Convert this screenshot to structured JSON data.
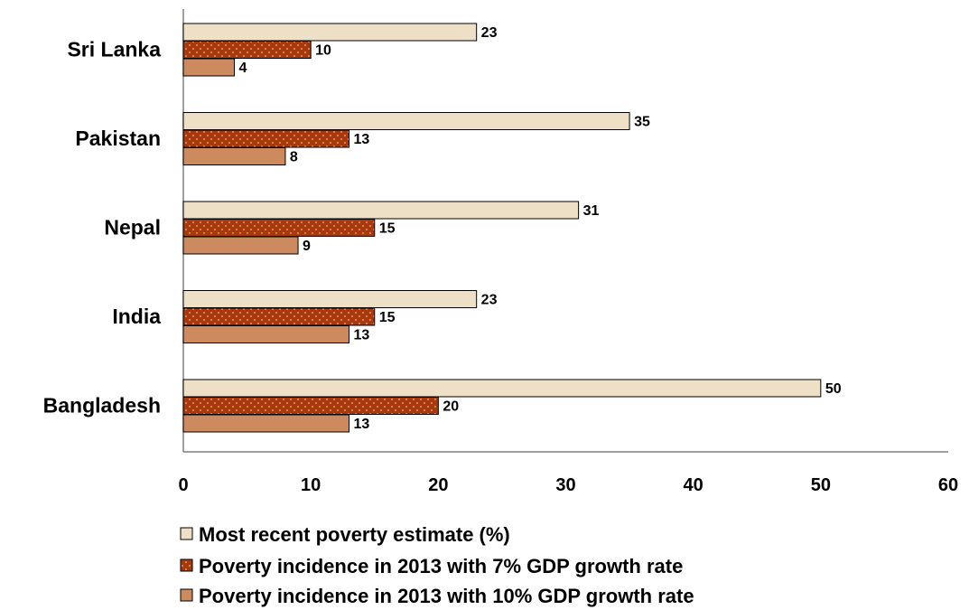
{
  "chart_data": {
    "type": "bar",
    "orientation": "horizontal",
    "categories": [
      "Sri Lanka",
      "Pakistan",
      "Nepal",
      "India",
      "Bangladesh"
    ],
    "series": [
      {
        "name": "Most recent poverty estimate (%)",
        "values": [
          23,
          35,
          31,
          23,
          50
        ],
        "color": "#ede0c6"
      },
      {
        "name": "Poverty incidence in 2013 with 7% GDP growth rate",
        "values": [
          10,
          13,
          15,
          15,
          20
        ],
        "color": "#a8390c"
      },
      {
        "name": "Poverty incidence in 2013 with 10% GDP growth rate",
        "values": [
          4,
          8,
          9,
          13,
          13
        ],
        "color": "#cd8a5e"
      }
    ],
    "xlim": [
      0,
      60
    ],
    "xticks": [
      0,
      10,
      20,
      30,
      40,
      50,
      60
    ],
    "legend_position": "bottom",
    "grid": false
  }
}
